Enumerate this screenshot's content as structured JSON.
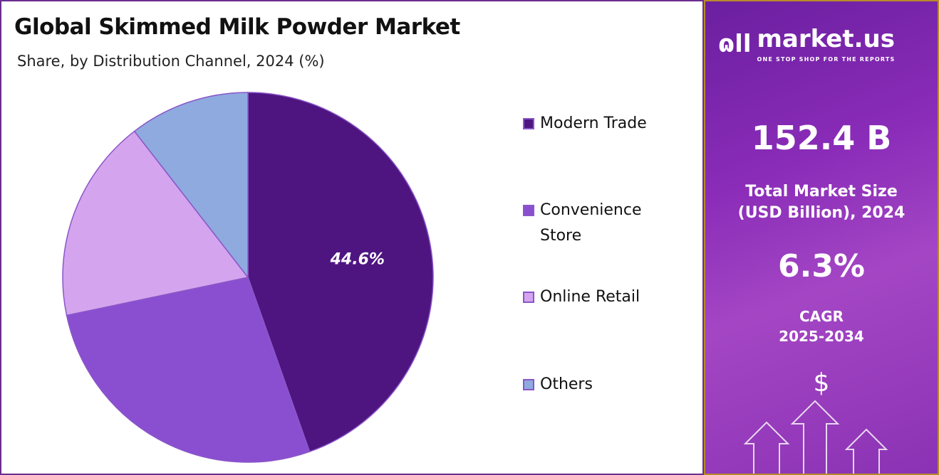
{
  "chart_data": {
    "type": "pie",
    "title": "Global Skimmed Milk Powder Market",
    "subtitle": "Share, by Distribution Channel, 2024 (%)",
    "categories": [
      "Modern Trade",
      "Convenience Store",
      "Online Retail",
      "Others"
    ],
    "values": [
      44.6,
      27.1,
      17.8,
      10.5
    ],
    "colors": [
      "#4e1581",
      "#8a4fd0",
      "#d4a5ee",
      "#8eaadf"
    ],
    "data_labels": [
      "44.6%",
      "",
      "",
      ""
    ],
    "legend_position": "right"
  },
  "legend": {
    "labels": [
      "Modern Trade",
      "Convenience",
      "Online Retail",
      "Others"
    ],
    "label_line2": "Store"
  },
  "sidebar": {
    "brand": "market.us",
    "tagline": "ONE STOP SHOP FOR THE REPORTS",
    "market_size": "152.4 B",
    "market_size_label_1": "Total Market Size",
    "market_size_label_2": "(USD Billion), 2024",
    "cagr": "6.3%",
    "cagr_label_1": "CAGR",
    "cagr_label_2": "2025-2034",
    "dollar": "$",
    "icons": [
      "market-us-logo-icon",
      "dollar-icon",
      "arrow-up-icon"
    ]
  }
}
